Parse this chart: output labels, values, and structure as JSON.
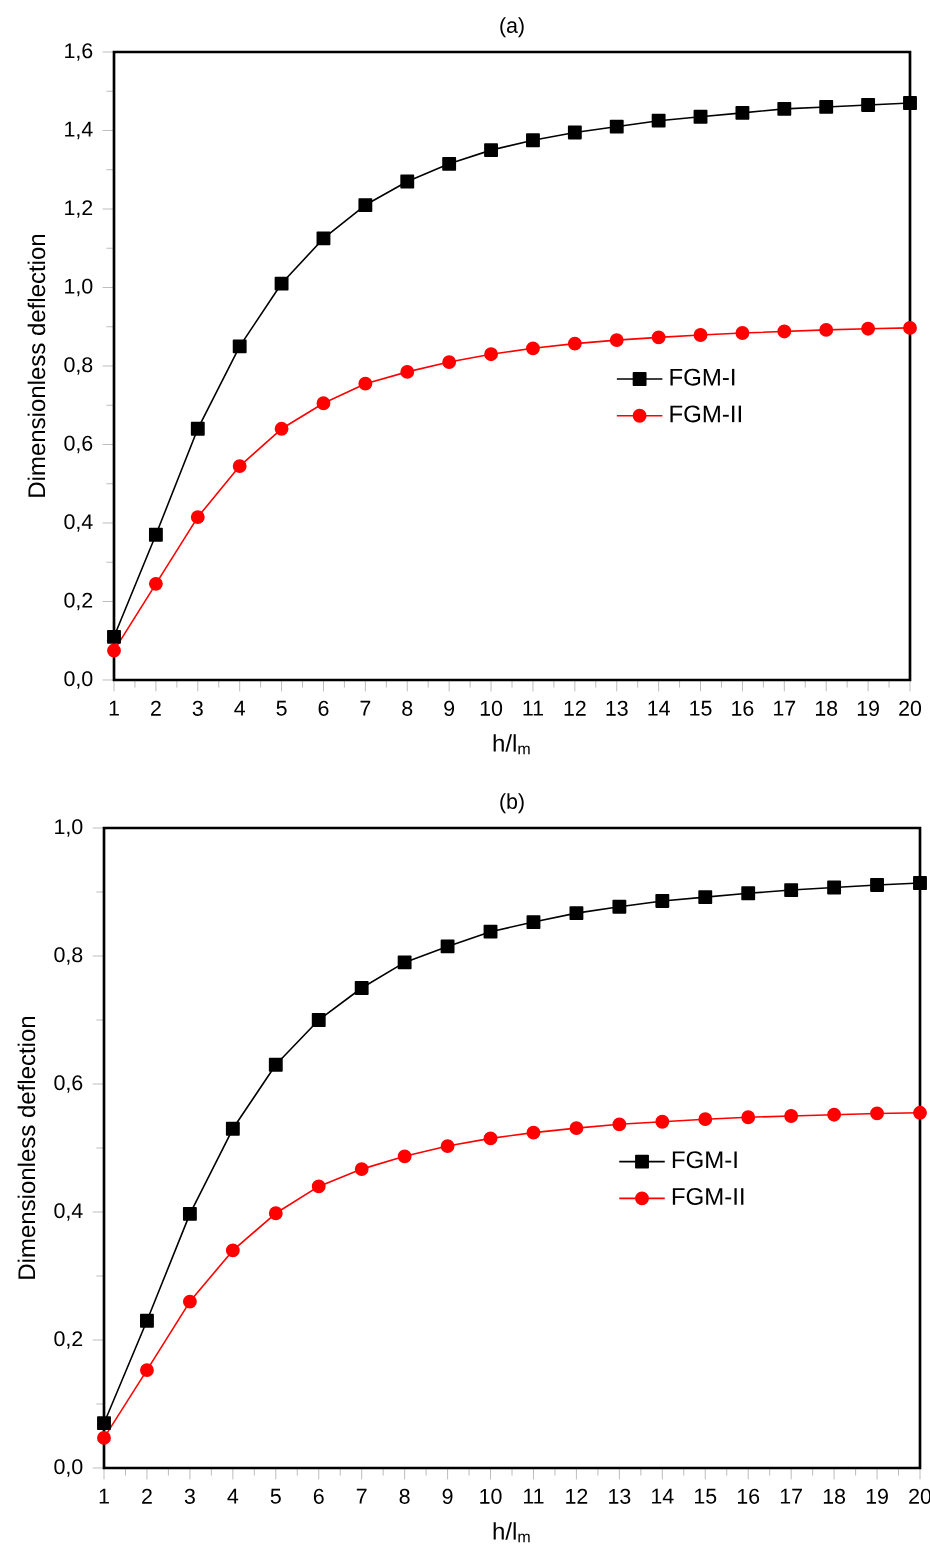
{
  "chart_data": [
    {
      "type": "line",
      "title": "(a)",
      "xlabel": "h/l$_{m}$",
      "ylabel": "Dimensionless deflection",
      "x": [
        1,
        2,
        3,
        4,
        5,
        6,
        7,
        8,
        9,
        10,
        11,
        12,
        13,
        14,
        15,
        16,
        17,
        18,
        19,
        20
      ],
      "series": [
        {
          "name": "FGM-I",
          "color": "#000000",
          "marker": "square",
          "values": [
            0.11,
            0.37,
            0.64,
            0.85,
            1.01,
            1.125,
            1.21,
            1.27,
            1.315,
            1.35,
            1.375,
            1.395,
            1.41,
            1.425,
            1.435,
            1.445,
            1.455,
            1.46,
            1.465,
            1.47
          ]
        },
        {
          "name": "FGM-II",
          "color": "#ff0000",
          "marker": "circle",
          "values": [
            0.075,
            0.245,
            0.415,
            0.545,
            0.64,
            0.705,
            0.755,
            0.785,
            0.81,
            0.83,
            0.845,
            0.857,
            0.866,
            0.873,
            0.879,
            0.884,
            0.888,
            0.892,
            0.895,
            0.897
          ]
        }
      ],
      "xlim": [
        1,
        20
      ],
      "xticks": [
        1,
        2,
        3,
        4,
        5,
        6,
        7,
        8,
        9,
        10,
        11,
        12,
        13,
        14,
        15,
        16,
        17,
        18,
        19,
        20
      ],
      "ylim": [
        0,
        1.6
      ],
      "yticks": [
        {
          "value": 0,
          "label": "0,0"
        },
        {
          "value": 0.2,
          "label": "0,2"
        },
        {
          "value": 0.4,
          "label": "0,4"
        },
        {
          "value": 0.6,
          "label": "0,6"
        },
        {
          "value": 0.8,
          "label": "0,8"
        },
        {
          "value": 1.0,
          "label": "1,0"
        },
        {
          "value": 1.2,
          "label": "1,2"
        },
        {
          "value": 1.4,
          "label": "1,4"
        },
        {
          "value": 1.6,
          "label": "1,6"
        }
      ],
      "legend": "right",
      "line_style": "solid"
    },
    {
      "type": "line",
      "title": "(b)",
      "xlabel": "h/l$_{m}$",
      "ylabel": "Dimensionless deflection",
      "x": [
        1,
        2,
        3,
        4,
        5,
        6,
        7,
        8,
        9,
        10,
        11,
        12,
        13,
        14,
        15,
        16,
        17,
        18,
        19,
        20
      ],
      "series": [
        {
          "name": "FGM-I",
          "color": "#000000",
          "marker": "square",
          "values": [
            0.07,
            0.23,
            0.397,
            0.53,
            0.63,
            0.7,
            0.75,
            0.79,
            0.815,
            0.838,
            0.853,
            0.867,
            0.877,
            0.886,
            0.892,
            0.898,
            0.903,
            0.907,
            0.911,
            0.914
          ]
        },
        {
          "name": "FGM-II",
          "color": "#ff0000",
          "marker": "circle",
          "values": [
            0.047,
            0.153,
            0.26,
            0.34,
            0.398,
            0.44,
            0.467,
            0.487,
            0.503,
            0.515,
            0.524,
            0.531,
            0.537,
            0.541,
            0.545,
            0.548,
            0.55,
            0.552,
            0.554,
            0.555
          ]
        }
      ],
      "xlim": [
        1,
        20
      ],
      "xticks": [
        1,
        2,
        3,
        4,
        5,
        6,
        7,
        8,
        9,
        10,
        11,
        12,
        13,
        14,
        15,
        16,
        17,
        18,
        19,
        20
      ],
      "ylim": [
        0,
        1.0
      ],
      "yticks": [
        {
          "value": 0,
          "label": "0,0"
        },
        {
          "value": 0.2,
          "label": "0,2"
        },
        {
          "value": 0.4,
          "label": "0,4"
        },
        {
          "value": 0.6,
          "label": "0,6"
        },
        {
          "value": 0.8,
          "label": "0,8"
        },
        {
          "value": 1.0,
          "label": "1,0"
        }
      ],
      "legend": "right",
      "line_style": "solid"
    }
  ]
}
